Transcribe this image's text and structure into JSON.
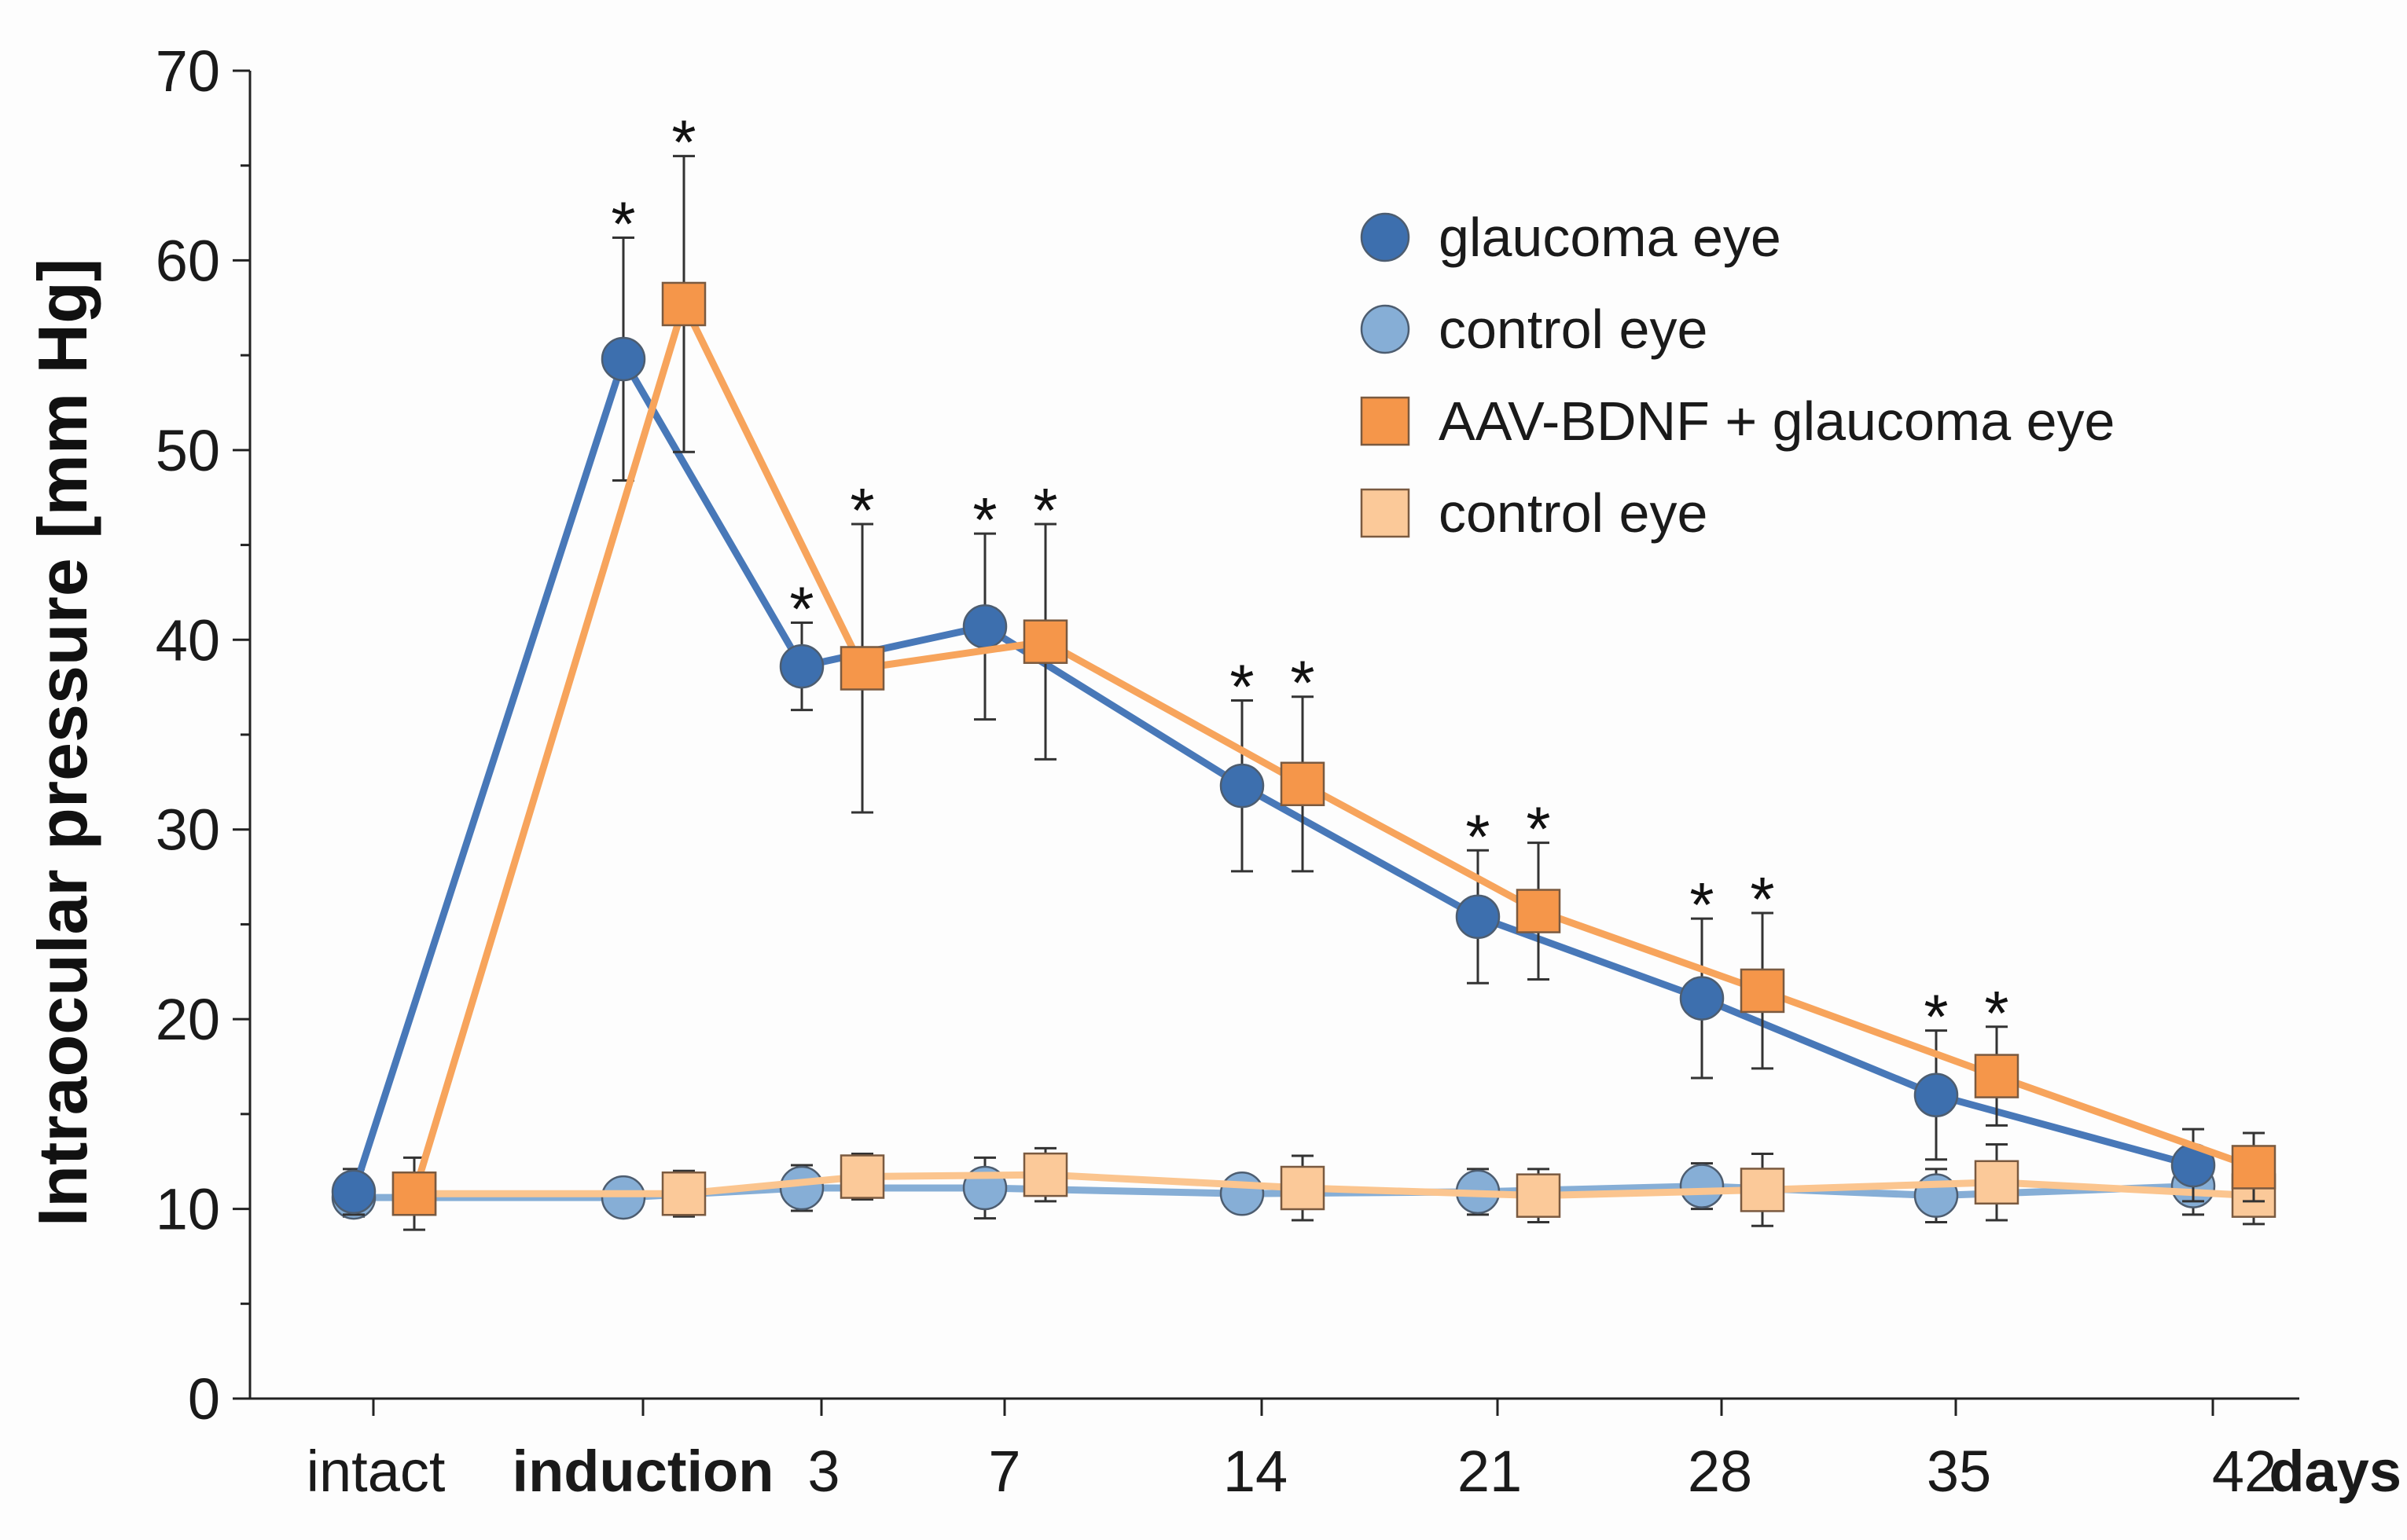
{
  "chart_data": {
    "type": "line",
    "title": "",
    "ylabel": "Intraocular pressure [mm Hg]",
    "xlabel": "days",
    "ylim": [
      0,
      70
    ],
    "yticks": [
      0,
      10,
      20,
      30,
      40,
      50,
      60,
      70
    ],
    "categories": [
      "intact",
      "induction",
      "3",
      "7",
      "14",
      "21",
      "28",
      "35",
      "42"
    ],
    "bold_categories": [
      "induction"
    ],
    "x_unit_label": "days",
    "series": [
      {
        "name": "glaucoma eye",
        "marker": "circle",
        "fill": "#3d6fae",
        "line": "#4878b8",
        "values": [
          10.9,
          54.8,
          38.6,
          40.7,
          32.3,
          25.4,
          21.1,
          16.0,
          12.3
        ],
        "errors": [
          1.2,
          6.4,
          2.3,
          4.9,
          4.5,
          3.5,
          4.2,
          3.4,
          1.9
        ],
        "significance": [
          false,
          true,
          true,
          true,
          true,
          true,
          true,
          true,
          false
        ]
      },
      {
        "name": "control eye",
        "marker": "circle",
        "fill": "#86aed6",
        "line": "#86aed6",
        "values": [
          10.6,
          10.6,
          11.1,
          11.1,
          10.8,
          10.9,
          11.2,
          10.7,
          11.2
        ],
        "errors": [
          1.0,
          0.9,
          1.2,
          1.6,
          0.9,
          1.2,
          1.2,
          1.4,
          1.5
        ],
        "significance": [
          false,
          false,
          false,
          false,
          false,
          false,
          false,
          false,
          false
        ]
      },
      {
        "name": "AAV-BDNF + glaucoma eye",
        "marker": "square",
        "fill": "#f5964a",
        "line": "#f7a45c",
        "values": [
          10.8,
          57.7,
          38.5,
          39.9,
          32.4,
          25.7,
          21.5,
          17.0,
          12.2
        ],
        "errors": [
          1.9,
          7.8,
          7.6,
          6.2,
          4.6,
          3.6,
          4.1,
          2.6,
          1.8
        ],
        "significance": [
          false,
          true,
          true,
          true,
          true,
          true,
          true,
          true,
          false
        ]
      },
      {
        "name": "control eye",
        "marker": "square",
        "fill": "#fbc999",
        "line": "#fbc58f",
        "values": [
          10.8,
          10.8,
          11.7,
          11.8,
          11.1,
          10.7,
          11.0,
          11.4,
          10.7
        ],
        "errors": [
          1.0,
          1.2,
          1.2,
          1.4,
          1.7,
          1.4,
          1.9,
          2.0,
          1.5
        ],
        "significance": [
          false,
          false,
          false,
          false,
          false,
          false,
          false,
          false,
          false
        ]
      }
    ],
    "significance_symbol": "*",
    "legend_position": "top-right"
  }
}
